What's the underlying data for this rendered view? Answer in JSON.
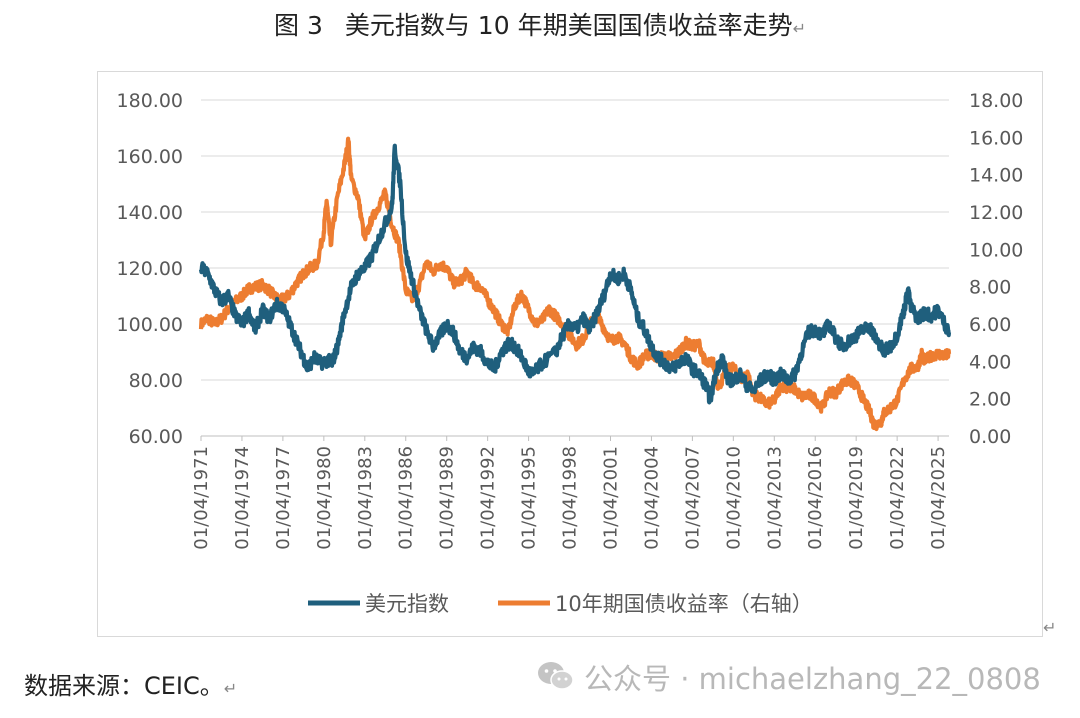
{
  "figure": {
    "number": "图 3",
    "title": "美元指数与 10 年期美国国债收益率走势",
    "return_mark": "↵"
  },
  "source": {
    "text": "数据来源：CEIC。",
    "return_mark": "↵"
  },
  "watermark": {
    "text": "公众号 · michaelzhang_22_0808",
    "icon": "wechat-icon"
  },
  "colors": {
    "usd_index": "#1f5f7d",
    "treasury_10y": "#ed7d31",
    "grid": "#d9d9d9",
    "axis_text": "#595959"
  },
  "chart_data": {
    "type": "line",
    "title": "",
    "legend_position": "bottom",
    "grid": true,
    "x_tick_labels": [
      "01/04/1971",
      "01/04/1974",
      "01/04/1977",
      "01/04/1980",
      "01/04/1983",
      "01/04/1986",
      "01/04/1989",
      "01/04/1992",
      "01/04/1995",
      "01/04/1998",
      "01/04/2001",
      "01/04/2004",
      "01/04/2007",
      "01/04/2010",
      "01/04/2013",
      "01/04/2016",
      "01/04/2019",
      "01/04/2022",
      "01/04/2025"
    ],
    "x_range": [
      1971.0,
      2025.8
    ],
    "y_left": {
      "range": [
        60,
        180
      ],
      "ticks": [
        "60.00",
        "80.00",
        "100.00",
        "120.00",
        "140.00",
        "160.00",
        "180.00"
      ]
    },
    "y_right": {
      "range": [
        0,
        18
      ],
      "ticks": [
        "0.00",
        "2.00",
        "4.00",
        "6.00",
        "8.00",
        "10.00",
        "12.00",
        "14.00",
        "16.00",
        "18.00"
      ]
    },
    "series": [
      {
        "name": "美元指数",
        "axis": "left",
        "x": [
          1971.0,
          1971.5,
          1972.0,
          1972.5,
          1973.0,
          1973.5,
          1974.0,
          1974.5,
          1975.0,
          1975.5,
          1976.0,
          1976.5,
          1977.0,
          1977.5,
          1978.0,
          1978.5,
          1978.8,
          1979.3,
          1979.8,
          1980.3,
          1980.6,
          1981.0,
          1981.5,
          1982.0,
          1982.5,
          1983.0,
          1983.5,
          1984.0,
          1984.5,
          1985.0,
          1985.2,
          1985.6,
          1986.0,
          1986.5,
          1987.0,
          1987.5,
          1988.0,
          1988.5,
          1989.0,
          1989.5,
          1990.0,
          1990.5,
          1991.0,
          1991.5,
          1992.0,
          1992.5,
          1993.0,
          1993.5,
          1994.0,
          1994.5,
          1995.0,
          1995.3,
          1996.0,
          1997.0,
          1997.5,
          1998.0,
          1998.5,
          1999.0,
          1999.5,
          2000.0,
          2000.5,
          2001.0,
          2001.5,
          2002.0,
          2002.5,
          2003.0,
          2003.5,
          2004.0,
          2004.5,
          2005.0,
          2005.5,
          2006.0,
          2006.5,
          2007.0,
          2007.5,
          2008.0,
          2008.3,
          2008.8,
          2009.2,
          2009.6,
          2010.0,
          2010.5,
          2011.0,
          2011.5,
          2012.0,
          2012.5,
          2013.0,
          2013.5,
          2014.0,
          2014.5,
          2015.0,
          2015.5,
          2016.0,
          2016.5,
          2017.0,
          2017.5,
          2018.0,
          2018.5,
          2019.0,
          2019.5,
          2020.0,
          2020.3,
          2020.8,
          2021.0,
          2021.5,
          2022.0,
          2022.5,
          2022.8,
          2023.0,
          2023.5,
          2024.0,
          2024.5,
          2025.0,
          2025.5,
          2025.8
        ],
        "values": [
          120,
          118,
          112,
          108,
          110,
          103,
          100,
          104,
          98,
          105,
          102,
          107,
          106,
          100,
          94,
          88,
          84,
          88,
          86,
          87,
          86,
          92,
          104,
          113,
          118,
          120,
          124,
          130,
          136,
          142,
          163,
          150,
          125,
          115,
          105,
          98,
          92,
          96,
          100,
          97,
          90,
          88,
          92,
          90,
          86,
          84,
          90,
          93,
          92,
          88,
          83,
          82,
          86,
          90,
          96,
          100,
          98,
          102,
          98,
          104,
          110,
          118,
          116,
          118,
          112,
          102,
          98,
          92,
          88,
          86,
          84,
          86,
          88,
          84,
          82,
          78,
          73,
          84,
          88,
          80,
          80,
          82,
          78,
          76,
          80,
          82,
          80,
          82,
          80,
          82,
          90,
          97,
          98,
          96,
          100,
          95,
          92,
          94,
          96,
          98,
          99,
          96,
          92,
          90,
          92,
          96,
          105,
          112,
          106,
          102,
          104,
          103,
          105,
          100,
          97
        ]
      },
      {
        "name": "10年期国债收益率（右轴）",
        "axis": "right",
        "x": [
          1971.0,
          1971.5,
          1972.0,
          1972.5,
          1973.0,
          1973.5,
          1974.0,
          1974.5,
          1975.0,
          1975.5,
          1976.0,
          1976.5,
          1977.0,
          1977.5,
          1978.0,
          1978.5,
          1979.0,
          1979.5,
          1980.0,
          1980.2,
          1980.5,
          1981.0,
          1981.5,
          1981.8,
          1982.0,
          1982.5,
          1983.0,
          1983.5,
          1984.0,
          1984.5,
          1985.0,
          1985.5,
          1986.0,
          1986.5,
          1987.0,
          1987.5,
          1988.0,
          1988.5,
          1989.0,
          1989.5,
          1990.0,
          1990.5,
          1991.0,
          1991.5,
          1992.0,
          1992.5,
          1993.0,
          1993.5,
          1994.0,
          1994.5,
          1995.0,
          1995.5,
          1996.0,
          1996.5,
          1997.0,
          1997.5,
          1998.0,
          1998.5,
          1999.0,
          1999.5,
          2000.0,
          2000.5,
          2001.0,
          2001.5,
          2002.0,
          2002.5,
          2003.0,
          2003.5,
          2004.0,
          2004.5,
          2005.0,
          2005.5,
          2006.0,
          2006.5,
          2007.0,
          2007.5,
          2008.0,
          2008.5,
          2008.9,
          2009.5,
          2010.0,
          2010.5,
          2011.0,
          2011.5,
          2012.0,
          2012.5,
          2013.0,
          2013.5,
          2014.0,
          2014.5,
          2015.0,
          2015.5,
          2016.0,
          2016.5,
          2017.0,
          2017.5,
          2018.0,
          2018.5,
          2019.0,
          2019.5,
          2020.0,
          2020.3,
          2020.8,
          2021.0,
          2021.5,
          2022.0,
          2022.5,
          2023.0,
          2023.5,
          2023.8,
          2024.0,
          2024.5,
          2025.0,
          2025.5,
          2025.8
        ],
        "values": [
          6.0,
          6.3,
          6.0,
          6.3,
          6.8,
          7.2,
          7.5,
          7.9,
          8.0,
          8.1,
          7.8,
          7.4,
          7.3,
          7.6,
          8.2,
          8.7,
          9.0,
          9.2,
          11.0,
          12.6,
          10.3,
          12.8,
          14.5,
          15.8,
          13.8,
          12.8,
          10.5,
          11.6,
          12.3,
          13.0,
          11.3,
          10.3,
          7.8,
          7.3,
          8.1,
          9.3,
          8.8,
          9.2,
          9.0,
          8.2,
          8.3,
          8.8,
          8.1,
          8.0,
          7.3,
          6.7,
          6.0,
          5.6,
          7.0,
          7.6,
          6.8,
          6.0,
          6.2,
          6.8,
          6.4,
          6.0,
          5.4,
          4.9,
          5.2,
          6.0,
          6.5,
          5.8,
          5.1,
          5.3,
          5.0,
          4.2,
          3.8,
          4.3,
          4.4,
          4.2,
          4.3,
          4.2,
          4.5,
          5.0,
          4.8,
          4.9,
          3.8,
          4.0,
          2.6,
          3.5,
          3.7,
          3.0,
          3.4,
          2.2,
          2.0,
          1.7,
          1.9,
          2.7,
          2.6,
          2.5,
          2.1,
          2.2,
          2.0,
          1.5,
          2.4,
          2.3,
          2.8,
          3.0,
          2.7,
          2.0,
          1.3,
          0.6,
          0.7,
          1.2,
          1.5,
          1.9,
          3.0,
          3.6,
          3.7,
          4.4,
          4.0,
          4.3,
          4.4,
          4.3,
          4.4
        ]
      }
    ]
  }
}
